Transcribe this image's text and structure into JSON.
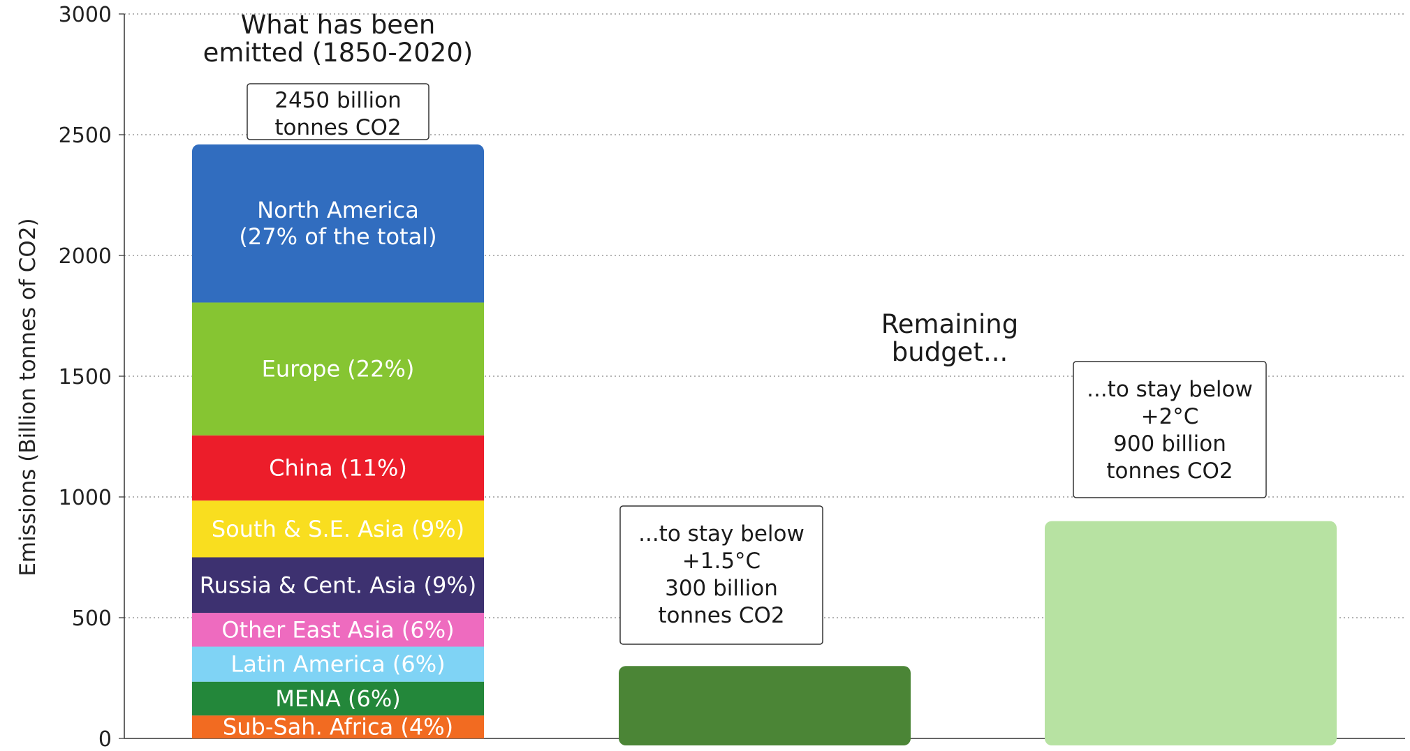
{
  "chart_data": {
    "type": "bar",
    "ylabel": "Emissions (Billion tonnes of CO2)",
    "ylim": [
      0,
      3000
    ],
    "yticks": [
      0,
      500,
      1000,
      1500,
      2000,
      2500,
      3000
    ],
    "grid": true,
    "bars": [
      {
        "title": [
          "What has been",
          "emitted (1850-2020)"
        ],
        "total_label": [
          "2450 billion",
          "tonnes CO2"
        ],
        "stacked": true,
        "segments": [
          {
            "name": "Sub-Sah. Africa (4%)",
            "value": 95,
            "color": "#f26b21"
          },
          {
            "name": "MENA (6%)",
            "value": 140,
            "color": "#23873a"
          },
          {
            "name": "Latin America (6%)",
            "value": 145,
            "color": "#7fd3f5"
          },
          {
            "name": "Other East Asia (6%)",
            "value": 140,
            "color": "#ee6bbf"
          },
          {
            "name": "Russia & Cent. Asia (9%)",
            "value": 230,
            "color": "#3d3170"
          },
          {
            "name": "South & S.E. Asia (9%)",
            "value": 235,
            "color": "#f9de1f"
          },
          {
            "name": "China (11%)",
            "value": 270,
            "color": "#ec1d2a"
          },
          {
            "name": "Europe (22%)",
            "value": 550,
            "color": "#86c532"
          },
          {
            "name": "North America (27%",
            "label_lines": [
              "North America",
              "(27% of the total)"
            ],
            "value": 655,
            "color": "#316dbf"
          }
        ]
      },
      {
        "label": [
          "...to stay below",
          "+1.5°C",
          "300 billion",
          "tonnes CO2"
        ],
        "value": 300,
        "color": "#4b8536"
      },
      {
        "label": [
          "...to stay below",
          "+2°C",
          "900 billion",
          "tonnes CO2"
        ],
        "value": 900,
        "color": "#b7e2a2"
      }
    ],
    "annotation": [
      "Remaining",
      "budget..."
    ]
  }
}
